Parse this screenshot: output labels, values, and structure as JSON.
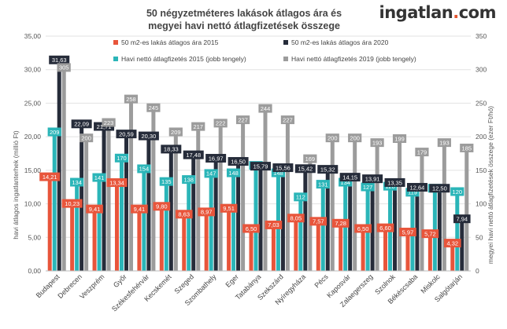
{
  "header": {
    "title_line1": "50 négyzetméteres lakások átlagos ára és",
    "title_line2": "megyei havi nettó átlagfizetések összege",
    "brand_text": "ingatlan",
    "brand_dot": ".",
    "brand_suffix": "com"
  },
  "chart_data": {
    "type": "bar",
    "categories": [
      "Budapest",
      "Debrecen",
      "Veszprém",
      "Győr",
      "Székesfehérvár",
      "Kecskemét",
      "Szeged",
      "Szombathely",
      "Eger",
      "Tatabánya",
      "Szekszárd",
      "Nyíregyháza",
      "Pécs",
      "Kaposvár",
      "Zalaegerszeg",
      "Szolnok",
      "Békéscsaba",
      "Miskolc",
      "Salgótarján"
    ],
    "ylabel": "havi átlagos ingatlanterhek (millió Ft)",
    "y2label": "megyei havi nettó átlagfizetések összege (ezer Ft/hó)",
    "ylim": [
      0,
      35
    ],
    "y2lim": [
      0,
      350
    ],
    "yticks": [
      "0,00",
      "5,00",
      "10,00",
      "15,00",
      "20,00",
      "25,00",
      "30,00",
      "35,00"
    ],
    "y2ticks": [
      "0",
      "50",
      "100",
      "150",
      "200",
      "250",
      "300",
      "350"
    ],
    "grid": true,
    "legend_position": "top",
    "series": [
      {
        "name": "50 m2-es lakás átlagos ára 2015",
        "axis": "left",
        "color": "#e8553b",
        "values": [
          14.21,
          10.23,
          9.41,
          13.34,
          9.41,
          9.8,
          8.63,
          8.97,
          9.51,
          6.5,
          7.03,
          8.05,
          7.57,
          7.28,
          6.5,
          6.6,
          5.97,
          5.72,
          4.32
        ],
        "labels": [
          "14,21",
          "10,23",
          "9,41",
          "13,34",
          "9,41",
          "9,80",
          "8,63",
          "8,97",
          "9,51",
          "6,50",
          "7,03",
          "8,05",
          "7,57",
          "7,28",
          "6,50",
          "6,60",
          "5,97",
          "5,72",
          "4,32"
        ]
      },
      {
        "name": "Havi nettó átlagfizetés 2015 (jobb tengely)",
        "axis": "right",
        "color": "#2bb5b8",
        "values": [
          209,
          134,
          141,
          170,
          154,
          135,
          138,
          147,
          148,
          159,
          148,
          112,
          131,
          134,
          127,
          128,
          119,
          125,
          120
        ],
        "labels": [
          "209",
          "134",
          "141",
          "170",
          "154",
          "135",
          "138",
          "147",
          "148",
          "159",
          "148",
          "112",
          "131",
          "134",
          "127",
          "128",
          "119",
          "125",
          "120"
        ]
      },
      {
        "name": "50 m2-es lakás átlagos ára 2020",
        "axis": "left",
        "color": "#262c3a",
        "values": [
          31.63,
          22.09,
          21.71,
          20.59,
          20.3,
          18.33,
          17.48,
          16.97,
          16.5,
          15.79,
          15.56,
          15.42,
          15.32,
          14.15,
          13.91,
          13.35,
          12.64,
          12.5,
          7.94
        ],
        "labels": [
          "31,63",
          "22,09",
          "21,71",
          "20,59",
          "20,30",
          "18,33",
          "17,48",
          "16,97",
          "16,50",
          "15,79",
          "15,56",
          "15,42",
          "15,32",
          "14,15",
          "13,91",
          "13,35",
          "12,64",
          "12,50",
          "7,94"
        ]
      },
      {
        "name": "Havi nettó átlagfizetés 2019 (jobb tengely)",
        "axis": "right",
        "color": "#9c9c9c",
        "values": [
          305,
          200,
          223,
          258,
          245,
          209,
          217,
          222,
          227,
          244,
          227,
          169,
          200,
          200,
          193,
          199,
          179,
          193,
          185
        ],
        "labels": [
          "305",
          "200",
          "223",
          "258",
          "245",
          "209",
          "217",
          "222",
          "227",
          "244",
          "227",
          "169",
          "200",
          "200",
          "193",
          "199",
          "179",
          "193",
          "185"
        ]
      }
    ]
  }
}
